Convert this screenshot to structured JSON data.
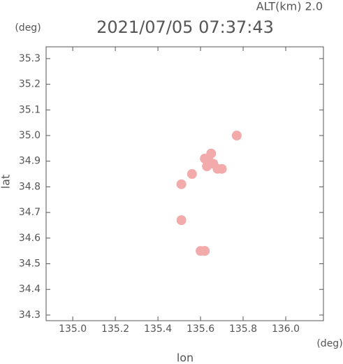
{
  "chart_data": {
    "type": "scatter",
    "title": "2021/07/05 07:37:43",
    "subtitle": "ALT(km) 2.0",
    "y_unit": "(deg)",
    "x_unit": "(deg)",
    "xlabel": "lon",
    "ylabel": "lat",
    "xlim": [
      134.875,
      136.177
    ],
    "ylim": [
      34.278,
      35.346
    ],
    "xticks": [
      {
        "value": 135,
        "label": "135.0"
      },
      135.2,
      135.4,
      135.6,
      135.8,
      {
        "value": 136,
        "label": "136.0"
      }
    ],
    "yticks": [
      34.3,
      34.4,
      34.5,
      34.6,
      34.7,
      34.8,
      34.9,
      {
        "value": 35,
        "label": "35.0"
      },
      35.1,
      35.2,
      35.3
    ],
    "color": "#f2aaaa",
    "x": [
      135.64,
      135.62,
      135.66,
      135.68,
      135.65,
      135.7,
      135.63,
      135.77,
      135.62,
      135.6,
      135.51,
      135.51,
      135.56
    ],
    "y": [
      34.9,
      34.91,
      34.89,
      34.87,
      34.93,
      34.87,
      34.88,
      35.0,
      34.55,
      34.55,
      34.81,
      34.67,
      34.85
    ]
  }
}
